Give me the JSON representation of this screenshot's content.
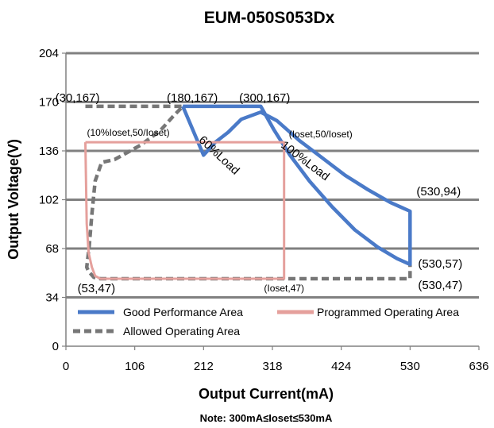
{
  "chart_data": {
    "type": "line",
    "title": "EUM-050S053Dx",
    "xlabel": "Output Current(mA)",
    "ylabel": "Output Voltage(V)",
    "note": "Note:  300mA≤Ioset≤530mA",
    "xlim": [
      0,
      636
    ],
    "ylim": [
      0,
      204
    ],
    "x_ticks": [
      0,
      106,
      212,
      318,
      424,
      530,
      636
    ],
    "y_ticks": [
      0,
      34,
      68,
      102,
      136,
      170,
      204
    ],
    "grid": "horizontal",
    "legend_placement": "bottom-inside",
    "series": [
      {
        "name": "Good Performance Area",
        "color": "#4a7ac8",
        "style": "solid",
        "points": [
          [
            180,
            167
          ],
          [
            300,
            167
          ],
          [
            320,
            151
          ],
          [
            345,
            133
          ],
          [
            375,
            115
          ],
          [
            410,
            97
          ],
          [
            445,
            81
          ],
          [
            480,
            69
          ],
          [
            510,
            61
          ],
          [
            530,
            57
          ],
          [
            530,
            94
          ],
          [
            500,
            100
          ],
          [
            465,
            109
          ],
          [
            430,
            119
          ],
          [
            395,
            131
          ],
          [
            360,
            143
          ],
          [
            325,
            157
          ],
          [
            300,
            163
          ],
          [
            270,
            158
          ],
          [
            250,
            149
          ],
          [
            230,
            142
          ],
          [
            212,
            133
          ],
          [
            180,
            167
          ]
        ]
      },
      {
        "name": "Programmed Operating Area",
        "color": "#e5a09c",
        "style": "solid",
        "points": [
          [
            30,
            142
          ],
          [
            336,
            142
          ],
          [
            336,
            47
          ],
          [
            53,
            47
          ],
          [
            45,
            49
          ],
          [
            40,
            55
          ],
          [
            35,
            65
          ],
          [
            32,
            85
          ],
          [
            30,
            142
          ]
        ]
      },
      {
        "name": "Allowed Operating Area",
        "color": "#777777",
        "style": "dashed",
        "points": [
          [
            30,
            167
          ],
          [
            180,
            167
          ],
          [
            165,
            160
          ],
          [
            145,
            150
          ],
          [
            115,
            140
          ],
          [
            75,
            130
          ],
          [
            55,
            128
          ],
          [
            45,
            115
          ],
          [
            40,
            92
          ],
          [
            36,
            70
          ],
          [
            32,
            55
          ],
          [
            35,
            52
          ],
          [
            43,
            48
          ],
          [
            53,
            47
          ],
          [
            530,
            47
          ],
          [
            530,
            57
          ]
        ]
      }
    ],
    "annotations": [
      {
        "text": "(30,167)",
        "x": 30,
        "y": 167
      },
      {
        "text": "(180,167)",
        "x": 180,
        "y": 167
      },
      {
        "text": "(300,167)",
        "x": 300,
        "y": 167
      },
      {
        "text": "(10%Ioset,50/Ioset)",
        "x": 30,
        "y": 142
      },
      {
        "text": "(Ioset,50/Ioset)",
        "x": 336,
        "y": 142
      },
      {
        "text": "(530,94)",
        "x": 530,
        "y": 94
      },
      {
        "text": "(530,57)",
        "x": 530,
        "y": 57
      },
      {
        "text": "(530,47)",
        "x": 530,
        "y": 47
      },
      {
        "text": "(53,47)",
        "x": 53,
        "y": 47
      },
      {
        "text": "(Ioset,47)",
        "x": 336,
        "y": 47
      },
      {
        "text": "60%Load",
        "x": 232,
        "y": 131
      },
      {
        "text": "100%Load",
        "x": 365,
        "y": 127
      }
    ]
  }
}
